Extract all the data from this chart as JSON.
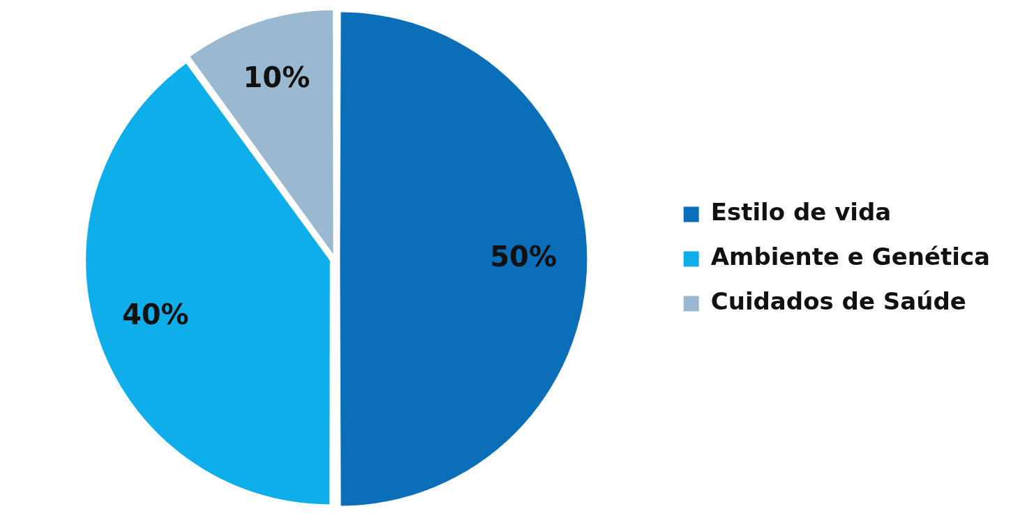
{
  "chart_data": {
    "type": "pie",
    "categories": [
      "Estilo de vida",
      "Ambiente e Genética",
      "Cuidados de Saúde"
    ],
    "values": [
      50,
      40,
      10
    ],
    "colors": [
      "#0a6eb8",
      "#0eaeea",
      "#9ab9d0"
    ],
    "value_labels": [
      "50%",
      "40%",
      "10%"
    ],
    "legend": "right"
  }
}
